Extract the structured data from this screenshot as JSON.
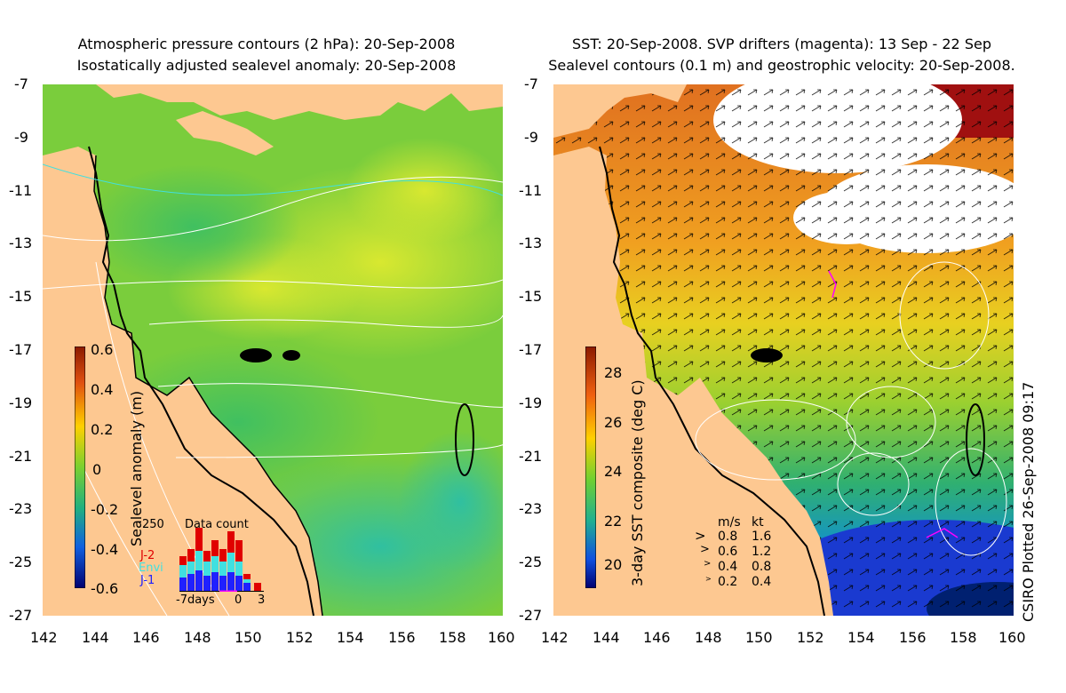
{
  "left_panel": {
    "title_line1": "Atmospheric pressure contours (2 hPa): 20-Sep-2008",
    "title_line2": "Isostatically adjusted sealevel anomaly: 20-Sep-2008",
    "colorbar_label": "Sealevel anomaly (m)",
    "colorbar_ticks": [
      "0.6",
      "0.4",
      "0.2",
      "0",
      "-0.2",
      "-0.4",
      "-0.6"
    ],
    "inset": {
      "title": "Data count",
      "ymax_label": "250",
      "legend": [
        "J-2",
        "Envi",
        "J-1"
      ],
      "x_labels": [
        "-7days",
        "0",
        "3"
      ],
      "legend_colors": {
        "J-2": "#e00000",
        "Envi": "#40e0e0",
        "J-1": "#2020ff"
      }
    }
  },
  "right_panel": {
    "title_line1": "SST: 20-Sep-2008. SVP drifters (magenta): 13 Sep - 22 Sep",
    "title_line2": "Sealevel contours (0.1 m) and geostrophic velocity: 20-Sep-2008.",
    "colorbar_label": "3-day SST composite (deg C)",
    "colorbar_ticks": [
      "28",
      "26",
      "24",
      "22",
      "20"
    ],
    "velocity_legend": {
      "header_ms": "m/s",
      "header_kt": "kt",
      "rows": [
        {
          "ms": "0.8",
          "kt": "1.6"
        },
        {
          "ms": "0.6",
          "kt": "1.2"
        },
        {
          "ms": "0.4",
          "kt": "0.8"
        },
        {
          "ms": "0.2",
          "kt": "0.4"
        }
      ]
    }
  },
  "y_ticks": [
    "-7",
    "-9",
    "-11",
    "-13",
    "-15",
    "-17",
    "-19",
    "-21",
    "-23",
    "-25",
    "-27"
  ],
  "x_ticks": [
    "142",
    "144",
    "146",
    "148",
    "150",
    "152",
    "154",
    "156",
    "158",
    "160"
  ],
  "stamp": "CSIRO Plotted 26-Sep-2008 09:17"
}
